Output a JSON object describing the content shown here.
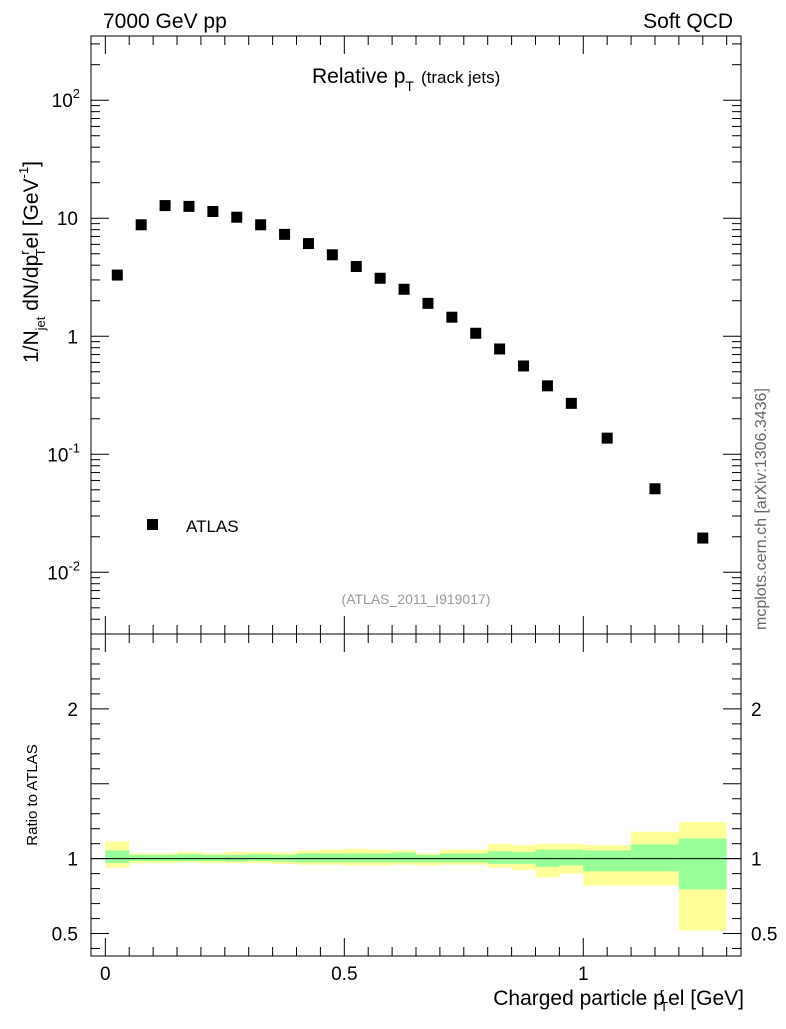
{
  "header": {
    "left": "7000 GeV pp",
    "right": "Soft QCD"
  },
  "side_label": "mcplots.cern.ch [arXiv:1306.3436]",
  "colors": {
    "marker": "#000000",
    "band_outer": "#ffff99",
    "band_inner": "#99ff99",
    "ref_line": "#000000"
  },
  "chart_data": [
    {
      "type": "scatter",
      "panel": "main",
      "title_main": "Relative p",
      "title_sub": "T",
      "title_extra": "(track jets)",
      "ylabel_parts": {
        "a": "1/N",
        "b": "jet",
        "c": " dN/dp",
        "d": "r",
        "e": "T",
        "f": "el [GeV",
        "g": "-1",
        "h": "]"
      },
      "yscale": "log",
      "ylim": [
        0.003,
        350
      ],
      "xlim": [
        -0.03,
        1.33
      ],
      "yticks": [
        {
          "value": 0.01,
          "base": "10",
          "exp": "-2"
        },
        {
          "value": 0.1,
          "base": "10",
          "exp": "-1"
        },
        {
          "value": 1,
          "base": "1",
          "exp": ""
        },
        {
          "value": 10,
          "base": "10",
          "exp": ""
        },
        {
          "value": 100,
          "base": "10",
          "exp": "2"
        }
      ],
      "legend": {
        "label": "ATLAS",
        "position": "bottom-left"
      },
      "reference": "(ATLAS_2011_I919017)",
      "series": [
        {
          "name": "ATLAS",
          "x": [
            0.025,
            0.075,
            0.125,
            0.175,
            0.225,
            0.275,
            0.325,
            0.375,
            0.425,
            0.475,
            0.525,
            0.575,
            0.625,
            0.675,
            0.725,
            0.775,
            0.825,
            0.875,
            0.925,
            0.975,
            1.05,
            1.15,
            1.25
          ],
          "y": [
            3.3,
            8.8,
            12.8,
            12.6,
            11.4,
            10.2,
            8.8,
            7.3,
            6.1,
            4.9,
            3.9,
            3.1,
            2.5,
            1.9,
            1.45,
            1.06,
            0.78,
            0.56,
            0.38,
            0.27,
            0.137,
            0.051,
            0.0195
          ]
        }
      ]
    },
    {
      "type": "area",
      "panel": "ratio",
      "ylabel": "Ratio to ATLAS",
      "xlabel_parts": {
        "a": "Charged particle p",
        "b": "r",
        "c": "T",
        "d": "el [GeV]"
      },
      "xlim": [
        -0.03,
        1.33
      ],
      "ylim": [
        0.35,
        2.5
      ],
      "xticks": [
        {
          "value": 0,
          "label": "0"
        },
        {
          "value": 0.5,
          "label": "0.5"
        },
        {
          "value": 1,
          "label": "1"
        }
      ],
      "yticks": [
        {
          "value": 0.5,
          "label": "0.5"
        },
        {
          "value": 1,
          "label": "1"
        },
        {
          "value": 2,
          "label": "2"
        }
      ],
      "reference_value": 1,
      "bin_edges": [
        0,
        0.05,
        0.1,
        0.15,
        0.2,
        0.25,
        0.3,
        0.35,
        0.4,
        0.45,
        0.5,
        0.55,
        0.6,
        0.65,
        0.7,
        0.75,
        0.8,
        0.85,
        0.9,
        0.95,
        1.0,
        1.1,
        1.2,
        1.3
      ],
      "total_band": {
        "low": [
          0.94,
          0.97,
          0.97,
          0.975,
          0.97,
          0.97,
          0.97,
          0.965,
          0.96,
          0.96,
          0.955,
          0.955,
          0.96,
          0.955,
          0.96,
          0.96,
          0.94,
          0.925,
          0.875,
          0.9,
          0.82,
          0.82,
          0.52
        ],
        "high": [
          1.115,
          1.035,
          1.035,
          1.045,
          1.035,
          1.045,
          1.045,
          1.04,
          1.055,
          1.06,
          1.065,
          1.06,
          1.055,
          1.035,
          1.06,
          1.06,
          1.1,
          1.09,
          1.1,
          1.1,
          1.09,
          1.18,
          1.245
        ]
      },
      "stat_band": {
        "low": [
          0.97,
          0.985,
          0.985,
          0.985,
          0.985,
          0.98,
          0.985,
          0.98,
          0.975,
          0.975,
          0.975,
          0.975,
          0.975,
          0.975,
          0.975,
          0.975,
          0.965,
          0.965,
          0.945,
          0.955,
          0.915,
          0.915,
          0.795
        ],
        "high": [
          1.055,
          1.025,
          1.025,
          1.03,
          1.025,
          1.025,
          1.03,
          1.025,
          1.035,
          1.035,
          1.035,
          1.035,
          1.04,
          1.025,
          1.035,
          1.035,
          1.05,
          1.045,
          1.06,
          1.06,
          1.055,
          1.095,
          1.135
        ]
      }
    }
  ]
}
